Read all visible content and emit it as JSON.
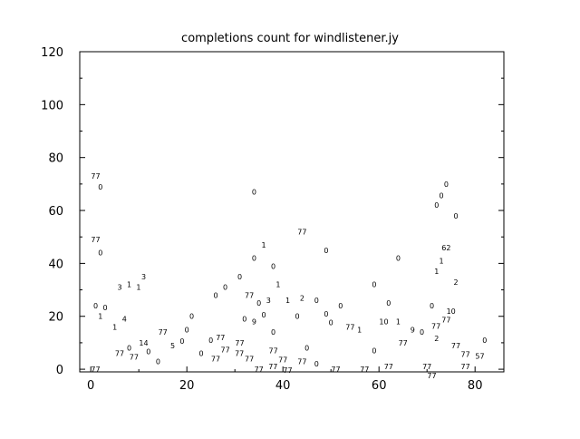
{
  "chart_data": {
    "type": "scatter",
    "title": "completions count for windlistener.jy",
    "xlabel": "",
    "ylabel": "",
    "xlim": [
      -2.3,
      86
    ],
    "ylim": [
      -1,
      120
    ],
    "x_ticks": [
      "0",
      "20",
      "40",
      "60",
      "80"
    ],
    "y_ticks": [
      "0",
      "20",
      "40",
      "60",
      "80",
      "100",
      "120"
    ],
    "grid": false,
    "marker": "text labels",
    "points": [
      {
        "x": 1,
        "y": 73,
        "label": "77"
      },
      {
        "x": 2,
        "y": 69,
        "label": "0"
      },
      {
        "x": 1,
        "y": 49,
        "label": "77"
      },
      {
        "x": 2,
        "y": 44,
        "label": "0"
      },
      {
        "x": 6,
        "y": 31,
        "label": "3"
      },
      {
        "x": 8,
        "y": 32,
        "label": "1"
      },
      {
        "x": 9,
        "y": 31,
        "label": "1"
      },
      {
        "x": 11,
        "y": 35,
        "label": "3"
      },
      {
        "x": 1,
        "y": 24,
        "label": "0"
      },
      {
        "x": 2,
        "y": 20,
        "label": "1"
      },
      {
        "x": 3,
        "y": 22,
        "label": "0"
      },
      {
        "x": 7,
        "y": 19,
        "label": "4"
      },
      {
        "x": 5,
        "y": 16,
        "label": "1"
      },
      {
        "x": 15,
        "y": 14,
        "label": "77"
      },
      {
        "x": 20,
        "y": 15,
        "label": "0"
      },
      {
        "x": 19,
        "y": 12,
        "label": "0"
      },
      {
        "x": 18,
        "y": 9,
        "label": "5"
      },
      {
        "x": 11,
        "y": 10,
        "label": "14"
      },
      {
        "x": 12,
        "y": 8,
        "label": "0"
      },
      {
        "x": 8,
        "y": 8,
        "label": "0"
      },
      {
        "x": 9,
        "y": 7,
        "label": "77"
      },
      {
        "x": 6,
        "y": 6,
        "label": "77"
      },
      {
        "x": 14,
        "y": 3,
        "label": "0"
      },
      {
        "x": 1,
        "y": 0,
        "label": "77"
      },
      {
        "x": 34,
        "y": 67,
        "label": "0"
      },
      {
        "x": 36,
        "y": 47,
        "label": "1"
      },
      {
        "x": 34,
        "y": 42,
        "label": "0"
      },
      {
        "x": 38,
        "y": 39,
        "label": "0"
      },
      {
        "x": 31,
        "y": 35,
        "label": "0"
      },
      {
        "x": 39,
        "y": 32,
        "label": "1"
      },
      {
        "x": 28,
        "y": 31,
        "label": "0"
      },
      {
        "x": 26,
        "y": 28,
        "label": "0"
      },
      {
        "x": 33,
        "y": 28,
        "label": "77"
      },
      {
        "x": 35,
        "y": 25,
        "label": "0"
      },
      {
        "x": 37,
        "y": 26,
        "label": "3"
      },
      {
        "x": 41,
        "y": 26,
        "label": "1"
      },
      {
        "x": 36,
        "y": 22,
        "label": "0"
      },
      {
        "x": 21,
        "y": 20,
        "label": "0"
      },
      {
        "x": 32,
        "y": 19,
        "label": "0"
      },
      {
        "x": 34,
        "y": 18,
        "label": "9"
      },
      {
        "x": 38,
        "y": 14,
        "label": "0"
      },
      {
        "x": 25,
        "y": 11,
        "label": "0"
      },
      {
        "x": 27,
        "y": 12,
        "label": "77"
      },
      {
        "x": 31,
        "y": 10,
        "label": "77"
      },
      {
        "x": 23,
        "y": 6,
        "label": "0"
      },
      {
        "x": 26,
        "y": 4,
        "label": "77"
      },
      {
        "x": 28,
        "y": 6,
        "label": "77"
      },
      {
        "x": 30,
        "y": 6,
        "label": "77"
      },
      {
        "x": 33,
        "y": 4,
        "label": "77"
      },
      {
        "x": 38,
        "y": 7,
        "label": "77"
      },
      {
        "x": 40,
        "y": 5,
        "label": "77"
      },
      {
        "x": 35,
        "y": 0,
        "label": "77"
      },
      {
        "x": 37,
        "y": 1,
        "label": "77"
      },
      {
        "x": 41,
        "y": 1,
        "label": "77"
      },
      {
        "x": 44,
        "y": 52,
        "label": "77"
      },
      {
        "x": 49,
        "y": 45,
        "label": "0"
      },
      {
        "x": 44,
        "y": 27,
        "label": "2"
      },
      {
        "x": 47,
        "y": 26,
        "label": "0"
      },
      {
        "x": 52,
        "y": 24,
        "label": "0"
      },
      {
        "x": 43,
        "y": 20,
        "label": "0"
      },
      {
        "x": 49,
        "y": 21,
        "label": "0"
      },
      {
        "x": 50,
        "y": 19,
        "label": "0"
      },
      {
        "x": 54,
        "y": 16,
        "label": "77"
      },
      {
        "x": 55,
        "y": 15,
        "label": "1"
      },
      {
        "x": 45,
        "y": 8,
        "label": "0"
      },
      {
        "x": 44,
        "y": 3,
        "label": "77"
      },
      {
        "x": 47,
        "y": 2,
        "label": "0"
      },
      {
        "x": 51,
        "y": 0,
        "label": "77"
      },
      {
        "x": 57,
        "y": 0,
        "label": "77"
      },
      {
        "x": 59,
        "y": 32,
        "label": "0"
      },
      {
        "x": 61,
        "y": 18,
        "label": "10"
      },
      {
        "x": 59,
        "y": 7,
        "label": "0"
      },
      {
        "x": 74,
        "y": 70,
        "label": "0"
      },
      {
        "x": 73,
        "y": 67,
        "label": "0"
      },
      {
        "x": 72,
        "y": 62,
        "label": "0"
      },
      {
        "x": 76,
        "y": 58,
        "label": "0"
      },
      {
        "x": 74,
        "y": 46,
        "label": "62"
      },
      {
        "x": 73,
        "y": 41,
        "label": "1"
      },
      {
        "x": 64,
        "y": 42,
        "label": "0"
      },
      {
        "x": 72,
        "y": 37,
        "label": "1"
      },
      {
        "x": 76,
        "y": 33,
        "label": "2"
      },
      {
        "x": 62,
        "y": 25,
        "label": "0"
      },
      {
        "x": 71,
        "y": 24,
        "label": "0"
      },
      {
        "x": 75,
        "y": 22,
        "label": "10"
      },
      {
        "x": 74,
        "y": 20,
        "label": "77"
      },
      {
        "x": 64,
        "y": 18,
        "label": "1"
      },
      {
        "x": 73,
        "y": 18,
        "label": "77"
      },
      {
        "x": 67,
        "y": 15,
        "label": "9"
      },
      {
        "x": 68,
        "y": 14,
        "label": "0"
      },
      {
        "x": 72,
        "y": 13,
        "label": "2"
      },
      {
        "x": 65,
        "y": 10,
        "label": "77"
      },
      {
        "x": 76,
        "y": 9,
        "label": "77"
      },
      {
        "x": 82,
        "y": 11,
        "label": "0"
      },
      {
        "x": 78,
        "y": 7,
        "label": "77"
      },
      {
        "x": 81,
        "y": 5,
        "label": "57"
      },
      {
        "x": 62,
        "y": 1,
        "label": "77"
      },
      {
        "x": 70,
        "y": 1,
        "label": "77"
      },
      {
        "x": 71,
        "y": 0,
        "label": "77"
      },
      {
        "x": 78,
        "y": 1,
        "label": "77"
      }
    ]
  }
}
